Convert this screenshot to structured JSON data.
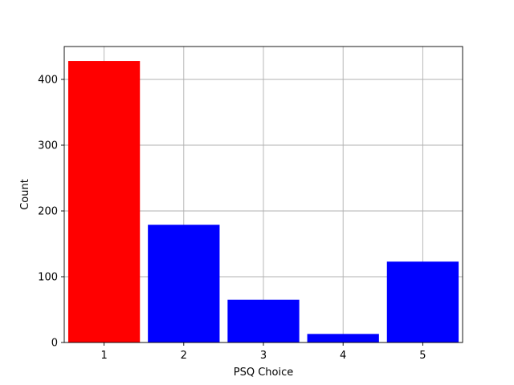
{
  "chart_data": {
    "type": "bar",
    "categories": [
      "1",
      "2",
      "3",
      "4",
      "5"
    ],
    "values": [
      428,
      179,
      65,
      13,
      123
    ],
    "colors": [
      "#ff0000",
      "#0000ff",
      "#0000ff",
      "#0000ff",
      "#0000ff"
    ],
    "title": "",
    "xlabel": "PSQ Choice",
    "ylabel": "Count",
    "ylim": [
      0,
      450
    ],
    "xlim": [
      0.5,
      5.5
    ],
    "yticks": [
      0,
      100,
      200,
      300,
      400
    ],
    "xticks": [
      1,
      2,
      3,
      4,
      5
    ],
    "grid": true,
    "bar_width": 0.9
  }
}
